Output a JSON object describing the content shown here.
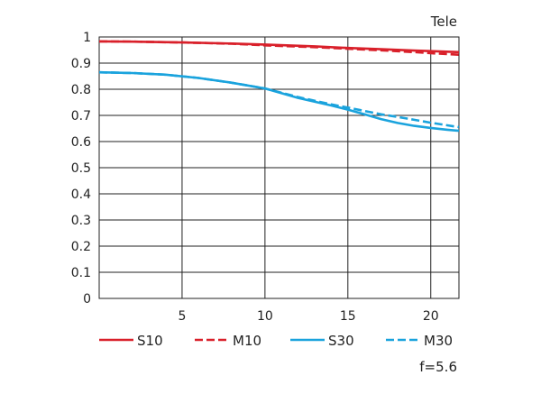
{
  "chart_data": {
    "type": "line",
    "title": "Tele",
    "annotation": "f=5.6",
    "xlabel": "",
    "ylabel": "",
    "xlim": [
      0,
      21.7
    ],
    "ylim": [
      0,
      1
    ],
    "x_ticks": [
      5,
      10,
      15,
      20
    ],
    "y_ticks": [
      0,
      0.1,
      0.2,
      0.3,
      0.4,
      0.5,
      0.6,
      0.7,
      0.8,
      0.9,
      1
    ],
    "y_tick_labels": [
      "0",
      "0.1",
      "0.2",
      "0.3",
      "0.4",
      "0.5",
      "0.6",
      "0.7",
      "0.8",
      "0.9",
      "1"
    ],
    "grid": true,
    "legend_position": "bottom",
    "series": [
      {
        "name": "S10",
        "color": "#d9202a",
        "dash": "solid",
        "x": [
          0,
          2,
          5,
          8,
          10,
          13,
          15,
          17,
          19,
          20,
          21.7
        ],
        "y": [
          0.983,
          0.982,
          0.979,
          0.975,
          0.971,
          0.964,
          0.958,
          0.953,
          0.948,
          0.946,
          0.942
        ]
      },
      {
        "name": "M10",
        "color": "#d9202a",
        "dash": "dashed",
        "x": [
          0,
          2,
          5,
          8,
          10,
          13,
          15,
          17,
          19,
          20,
          21.7
        ],
        "y": [
          0.983,
          0.982,
          0.979,
          0.974,
          0.968,
          0.961,
          0.955,
          0.949,
          0.942,
          0.938,
          0.932
        ]
      },
      {
        "name": "S30",
        "color": "#1aa3dd",
        "dash": "solid",
        "x": [
          0,
          2,
          4,
          6,
          8,
          10,
          12,
          14,
          15,
          16,
          17,
          18,
          19,
          20,
          21,
          21.7
        ],
        "y": [
          0.865,
          0.862,
          0.856,
          0.843,
          0.825,
          0.803,
          0.767,
          0.738,
          0.722,
          0.704,
          0.686,
          0.671,
          0.66,
          0.652,
          0.645,
          0.641
        ]
      },
      {
        "name": "M30",
        "color": "#1aa3dd",
        "dash": "dashed",
        "x": [
          0,
          2,
          4,
          6,
          8,
          10,
          12,
          14,
          15,
          16,
          17,
          18,
          19,
          20,
          21,
          21.7
        ],
        "y": [
          0.865,
          0.862,
          0.856,
          0.843,
          0.825,
          0.803,
          0.77,
          0.742,
          0.73,
          0.717,
          0.704,
          0.694,
          0.683,
          0.672,
          0.662,
          0.655
        ]
      }
    ]
  }
}
